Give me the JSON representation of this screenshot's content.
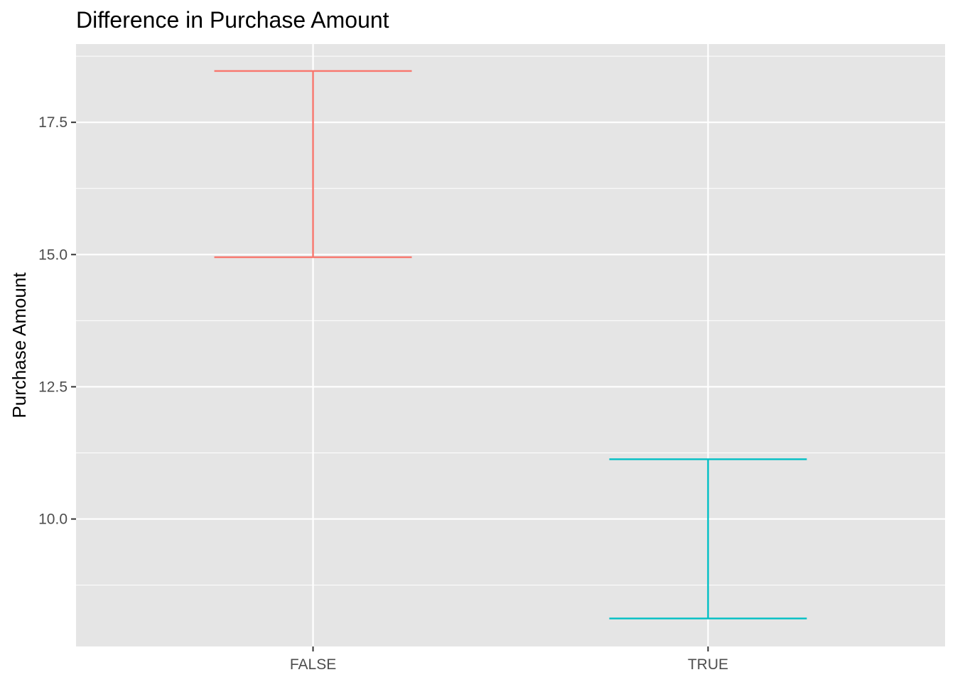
{
  "chart_data": {
    "type": "errorbar",
    "title": "Difference in Purchase Amount",
    "xlabel": "",
    "ylabel": "Purchase Amount",
    "categories": [
      "FALSE",
      "TRUE"
    ],
    "intervals": [
      {
        "category": "FALSE",
        "low": 14.95,
        "high": 18.47,
        "color": "#F8766D"
      },
      {
        "category": "TRUE",
        "low": 8.12,
        "high": 11.13,
        "color": "#00BFC4"
      }
    ],
    "y_ticks": [
      10.0,
      12.5,
      15.0,
      17.5
    ],
    "y_tick_labels": [
      "10.0",
      "12.5",
      "15.0",
      "17.5"
    ],
    "ylim": [
      7.59,
      18.98
    ],
    "grid": true,
    "legend": "none",
    "colors": {
      "panel_background": "#E5E5E5",
      "grid_line": "#FFFFFF",
      "tick_text": "#4D4D4D",
      "tick_mark": "#333333"
    }
  }
}
